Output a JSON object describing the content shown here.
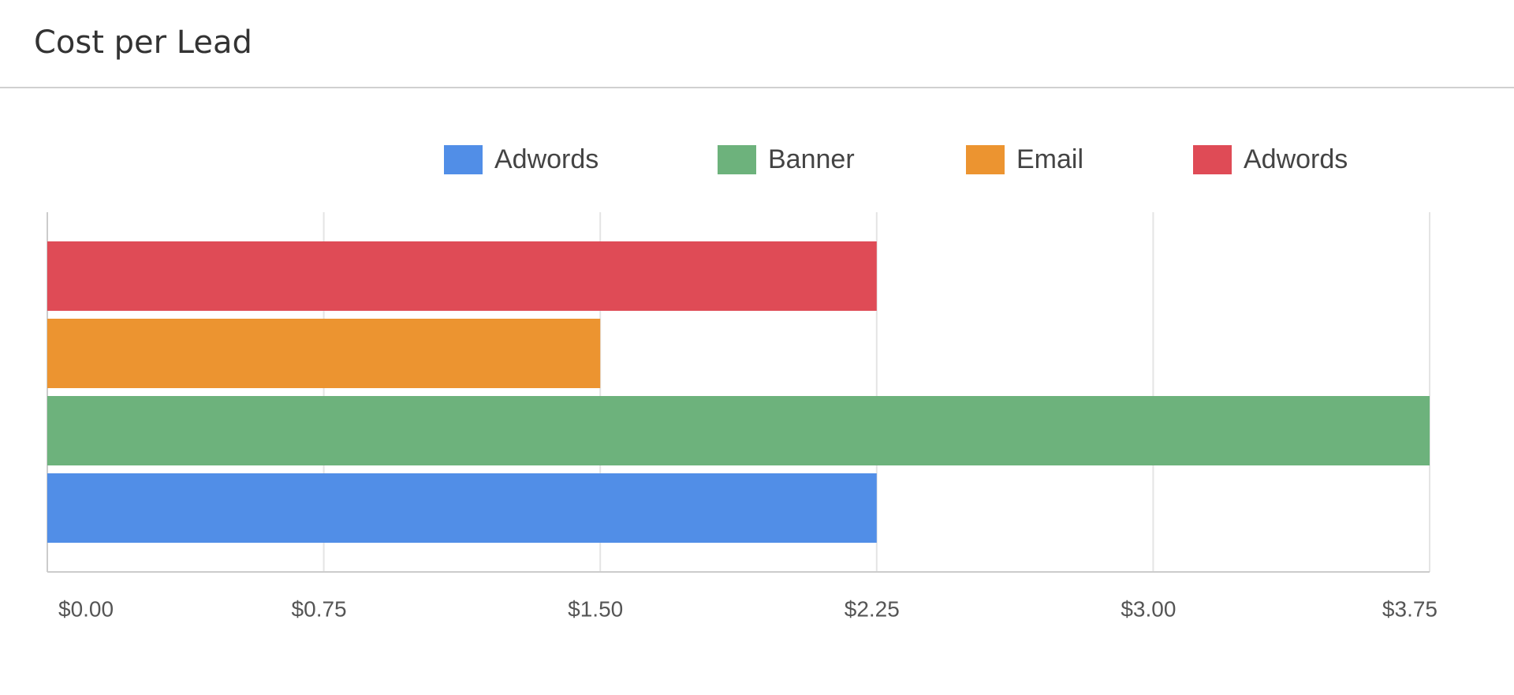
{
  "chart_data": {
    "type": "bar",
    "orientation": "horizontal",
    "title": "Cost per Lead",
    "categories": [
      null
    ],
    "series": [
      {
        "name": "Adwords",
        "color": "#518ee7",
        "values": [
          2.25
        ]
      },
      {
        "name": "Banner",
        "color": "#6db27c",
        "values": [
          3.75
        ]
      },
      {
        "name": "Email",
        "color": "#ec9430",
        "values": [
          1.5
        ]
      },
      {
        "name": "Adwords",
        "color": "#df4b56",
        "values": [
          2.25
        ]
      }
    ],
    "xlim": [
      0,
      3.75
    ],
    "xticks": [
      {
        "value": 0,
        "label": "$0.00"
      },
      {
        "value": 0.75,
        "label": "$0.75"
      },
      {
        "value": 1.5,
        "label": "$1.50"
      },
      {
        "value": 2.25,
        "label": "$2.25"
      },
      {
        "value": 3,
        "label": "$3.00"
      },
      {
        "value": 3.75,
        "label": "$3.75"
      }
    ],
    "grid": true,
    "legend": "top"
  }
}
